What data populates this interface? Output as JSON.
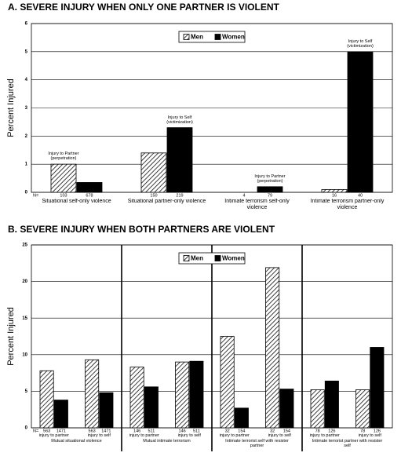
{
  "chart_data": [
    {
      "type": "bar",
      "title": "A. SEVERE INJURY WHEN ONLY ONE PARTNER IS VIOLENT",
      "y_label": "Percent Injured",
      "categories": [
        "Situational self-only violence",
        "Situational partner-only violence",
        "Intimate terrorism self-only violence",
        "Intimate terrorism partner-only violence"
      ],
      "series": [
        {
          "name": "Men",
          "color": "#000000",
          "fill": "hatch",
          "values": [
            1.0,
            1.4,
            0,
            0.1
          ]
        },
        {
          "name": "Women",
          "color": "#000000",
          "fill": "solid",
          "values": [
            0.35,
            2.3,
            0.2,
            5.0
          ]
        }
      ],
      "n_label": "N=",
      "n": [
        [
          103,
          150,
          4,
          16
        ],
        [
          678,
          219,
          79,
          40
        ]
      ],
      "annotations": [
        "Injury to Partner (perpetration)",
        "Injury to Self (victimization)",
        "Injury to Partner (perpetration)",
        "Injury to Self (victimization)"
      ],
      "ylim": [
        0,
        6
      ],
      "yticks": [
        0,
        1,
        2,
        3,
        4,
        5,
        6
      ],
      "grid": true,
      "legend": "top-center"
    },
    {
      "type": "bar",
      "title": "B. SEVERE INJURY WHEN BOTH PARTNERS ARE VIOLENT",
      "y_label": "Percent Injured",
      "categories": [
        "injury to partner",
        "injury to self",
        "injury to partner",
        "injury to self",
        "injury to partner",
        "injury to self",
        "injury to partner",
        "injury to self"
      ],
      "groups": [
        "Mutual situational violence",
        "Mutual intimate terrorism",
        "Intimate terrorist self with resister partner",
        "Intimate terrorist partner with resister self"
      ],
      "series": [
        {
          "name": "Men",
          "color": "#000000",
          "fill": "hatch",
          "values": [
            7.8,
            9.3,
            8.3,
            9.0,
            12.5,
            21.9,
            5.2,
            5.2
          ]
        },
        {
          "name": "Women",
          "color": "#000000",
          "fill": "solid",
          "values": [
            3.8,
            4.8,
            5.6,
            9.1,
            2.7,
            5.3,
            6.4,
            11.0
          ]
        }
      ],
      "n_label": "N=",
      "n": [
        [
          563,
          563,
          146,
          146,
          32,
          32,
          78,
          78
        ],
        [
          1471,
          1471,
          511,
          511,
          154,
          154,
          126,
          126
        ]
      ],
      "ylim": [
        0,
        25
      ],
      "yticks": [
        0,
        5,
        10,
        15,
        20,
        25
      ],
      "grid": true,
      "legend": "top-center"
    }
  ]
}
